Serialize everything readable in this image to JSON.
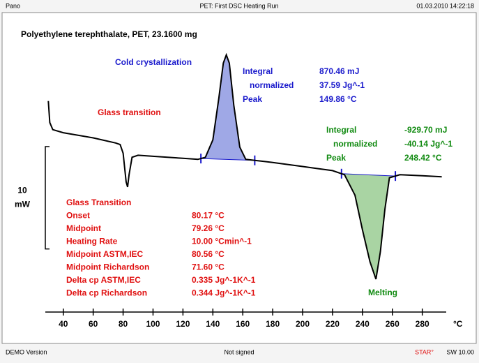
{
  "header": {
    "left": "Pano",
    "center": "PET: First DSC Heating Run",
    "right": "01.03.2010 14:22:18"
  },
  "footer": {
    "left": "DEMO Version",
    "center": "Not signed",
    "right_brand": "STAR°",
    "right": "SW 10.00"
  },
  "chart_data": {
    "type": "line",
    "title": "Polyethylene terephthalate, PET, 23.1600 mg",
    "x_unit": "°C",
    "scale_bar": {
      "value": 10,
      "unit": "mW"
    },
    "xlim": [
      28,
      296
    ],
    "ylim": [
      -15,
      15
    ],
    "xticks": [
      40,
      60,
      80,
      100,
      120,
      140,
      160,
      180,
      200,
      220,
      240,
      260,
      280
    ],
    "integration_limits": [
      [
        132,
        168
      ],
      [
        226,
        262
      ]
    ],
    "series": [
      {
        "name": "PET",
        "color": "#000000",
        "x": [
          30,
          31,
          33,
          40,
          60,
          75,
          78,
          80,
          82,
          83,
          84,
          86,
          90,
          100,
          120,
          130,
          135,
          140,
          144,
          147,
          149,
          151,
          154,
          158,
          162,
          180,
          200,
          210,
          220,
          228,
          235,
          240,
          245,
          249,
          252,
          255,
          258,
          265,
          280,
          293
        ],
        "values": [
          6.5,
          4.4,
          3.7,
          3.4,
          2.9,
          2.4,
          2.25,
          1.4,
          -1.4,
          -1.9,
          -0.7,
          1.0,
          1.2,
          1.1,
          0.9,
          0.8,
          1.0,
          2.7,
          6.8,
          10.2,
          11.0,
          10.2,
          6.1,
          2.0,
          0.8,
          0.5,
          0.1,
          -0.1,
          -0.3,
          -0.7,
          -2.7,
          -6.1,
          -9.2,
          -10.9,
          -8.2,
          -4.1,
          -1.0,
          -0.7,
          -0.8,
          -0.9
        ]
      }
    ],
    "fill_colors": [
      "#9fa8e6",
      "#a9d4a3"
    ],
    "annotations": [
      {
        "text": "Cold crystallization",
        "color": "#1a1acc"
      },
      {
        "text": "Glass transition",
        "color": "#e01010"
      },
      {
        "text": "Melting",
        "color": "#108a10"
      }
    ],
    "results": [
      {
        "color": "#1a1acc",
        "rows": [
          [
            "Integral",
            "870.46 mJ"
          ],
          [
            "normalized",
            "37.59 Jg^-1"
          ],
          [
            "Peak",
            "149.86 °C"
          ]
        ]
      },
      {
        "color": "#108a10",
        "rows": [
          [
            "Integral",
            "-929.70 mJ"
          ],
          [
            "normalized",
            "-40.14 Jg^-1"
          ],
          [
            "Peak",
            "248.42 °C"
          ]
        ]
      },
      {
        "color": "#e01010",
        "rows": [
          [
            "Glass Transition",
            ""
          ],
          [
            "Onset",
            "80.17 °C"
          ],
          [
            "Midpoint",
            "79.26 °C"
          ],
          [
            "Heating Rate",
            "10.00 °Cmin^-1"
          ],
          [
            "Midpoint ASTM,IEC",
            "80.56 °C"
          ],
          [
            "Midpoint Richardson",
            "71.60 °C"
          ],
          [
            "Delta cp ASTM,IEC",
            "0.335 Jg^-1K^-1"
          ],
          [
            "Delta cp Richardson",
            "0.344 Jg^-1K^-1"
          ]
        ]
      }
    ]
  }
}
